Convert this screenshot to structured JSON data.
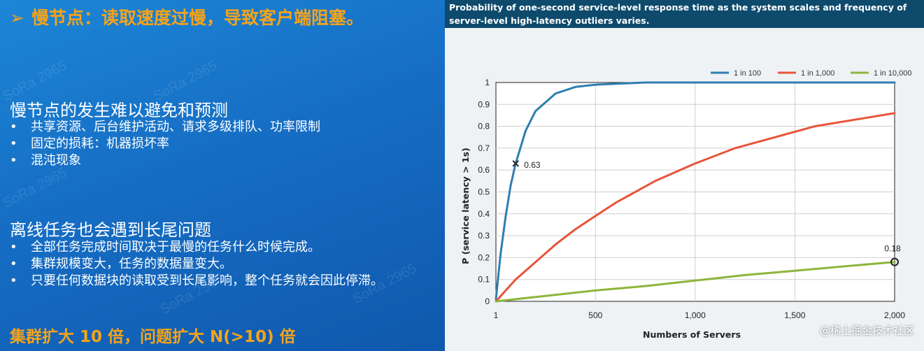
{
  "slide": {
    "heading_arrow": "➢",
    "heading": "慢节点：读取速度过慢，导致客户端阻塞。",
    "section1": {
      "title": "慢节点的发生难以避免和预测",
      "bullets": [
        "共享资源、后台维护活动、请求多级排队、功率限制",
        "固定的损耗：机器损坏率",
        "混沌现象"
      ]
    },
    "section2": {
      "title": "离线任务也会遇到长尾问题",
      "bullets": [
        "全部任务完成时间取决于最慢的任务什么时候完成。",
        "集群规模变大，任务的数据量变大。",
        "只要任何数据块的读取受到长尾影响，整个任务就会因此停滞。"
      ]
    },
    "footer": "集群扩大 10 倍，问题扩大 N(>10) 倍",
    "watermark_text": "SoRa 2965",
    "credit": "@稀土掘金技术社区",
    "bullet_mark": "•"
  },
  "colors": {
    "heading": "#f5a31a",
    "series_1in100": "#2e7fb0",
    "series_1in1000": "#e8543a",
    "series_1in10000": "#8db53a"
  },
  "chart_data": {
    "type": "line",
    "title": "Probability of one-second service-level response time as the system scales and frequency of server-level high-latency outliers varies.",
    "xlabel": "Numbers of Servers",
    "ylabel": "P (service latency > 1s)",
    "xlim": [
      1,
      2000
    ],
    "ylim": [
      0,
      1
    ],
    "xticks": [
      1,
      500,
      1000,
      1500,
      2000
    ],
    "xtick_labels": [
      "1",
      "500",
      "1,000",
      "1,500",
      "2,000"
    ],
    "yticks": [
      0,
      0.1,
      0.2,
      0.3,
      0.4,
      0.5,
      0.6,
      0.7,
      0.8,
      0.9,
      1
    ],
    "ytick_labels": [
      "0",
      "0.1",
      "0.2",
      "0.3",
      "0.4",
      "0.5",
      "0.6",
      "0.7",
      "0.8",
      "0.9",
      "1"
    ],
    "grid": true,
    "legend_position": "top-right",
    "series": [
      {
        "name": "1 in 100",
        "x": [
          1,
          25,
          50,
          75,
          100,
          150,
          200,
          300,
          400,
          500,
          750,
          1000,
          1500,
          2000
        ],
        "y": [
          0.01,
          0.22,
          0.39,
          0.53,
          0.63,
          0.78,
          0.87,
          0.95,
          0.98,
          0.99,
          1.0,
          1.0,
          1.0,
          1.0
        ]
      },
      {
        "name": "1 in 1,000",
        "x": [
          1,
          50,
          100,
          200,
          300,
          400,
          500,
          600,
          800,
          1000,
          1200,
          1400,
          1600,
          1800,
          2000
        ],
        "y": [
          0.0,
          0.05,
          0.1,
          0.18,
          0.26,
          0.33,
          0.39,
          0.45,
          0.55,
          0.63,
          0.7,
          0.75,
          0.8,
          0.83,
          0.86
        ]
      },
      {
        "name": "1 in 10,000",
        "x": [
          1,
          250,
          500,
          750,
          1000,
          1250,
          1500,
          1750,
          2000
        ],
        "y": [
          0.0,
          0.025,
          0.05,
          0.07,
          0.095,
          0.12,
          0.14,
          0.16,
          0.18
        ]
      }
    ],
    "annotations": [
      {
        "label": "0.63",
        "x": 100,
        "y": 0.63,
        "marker": "x"
      },
      {
        "label": "0.18",
        "x": 2000,
        "y": 0.18,
        "marker": "circle"
      }
    ]
  }
}
